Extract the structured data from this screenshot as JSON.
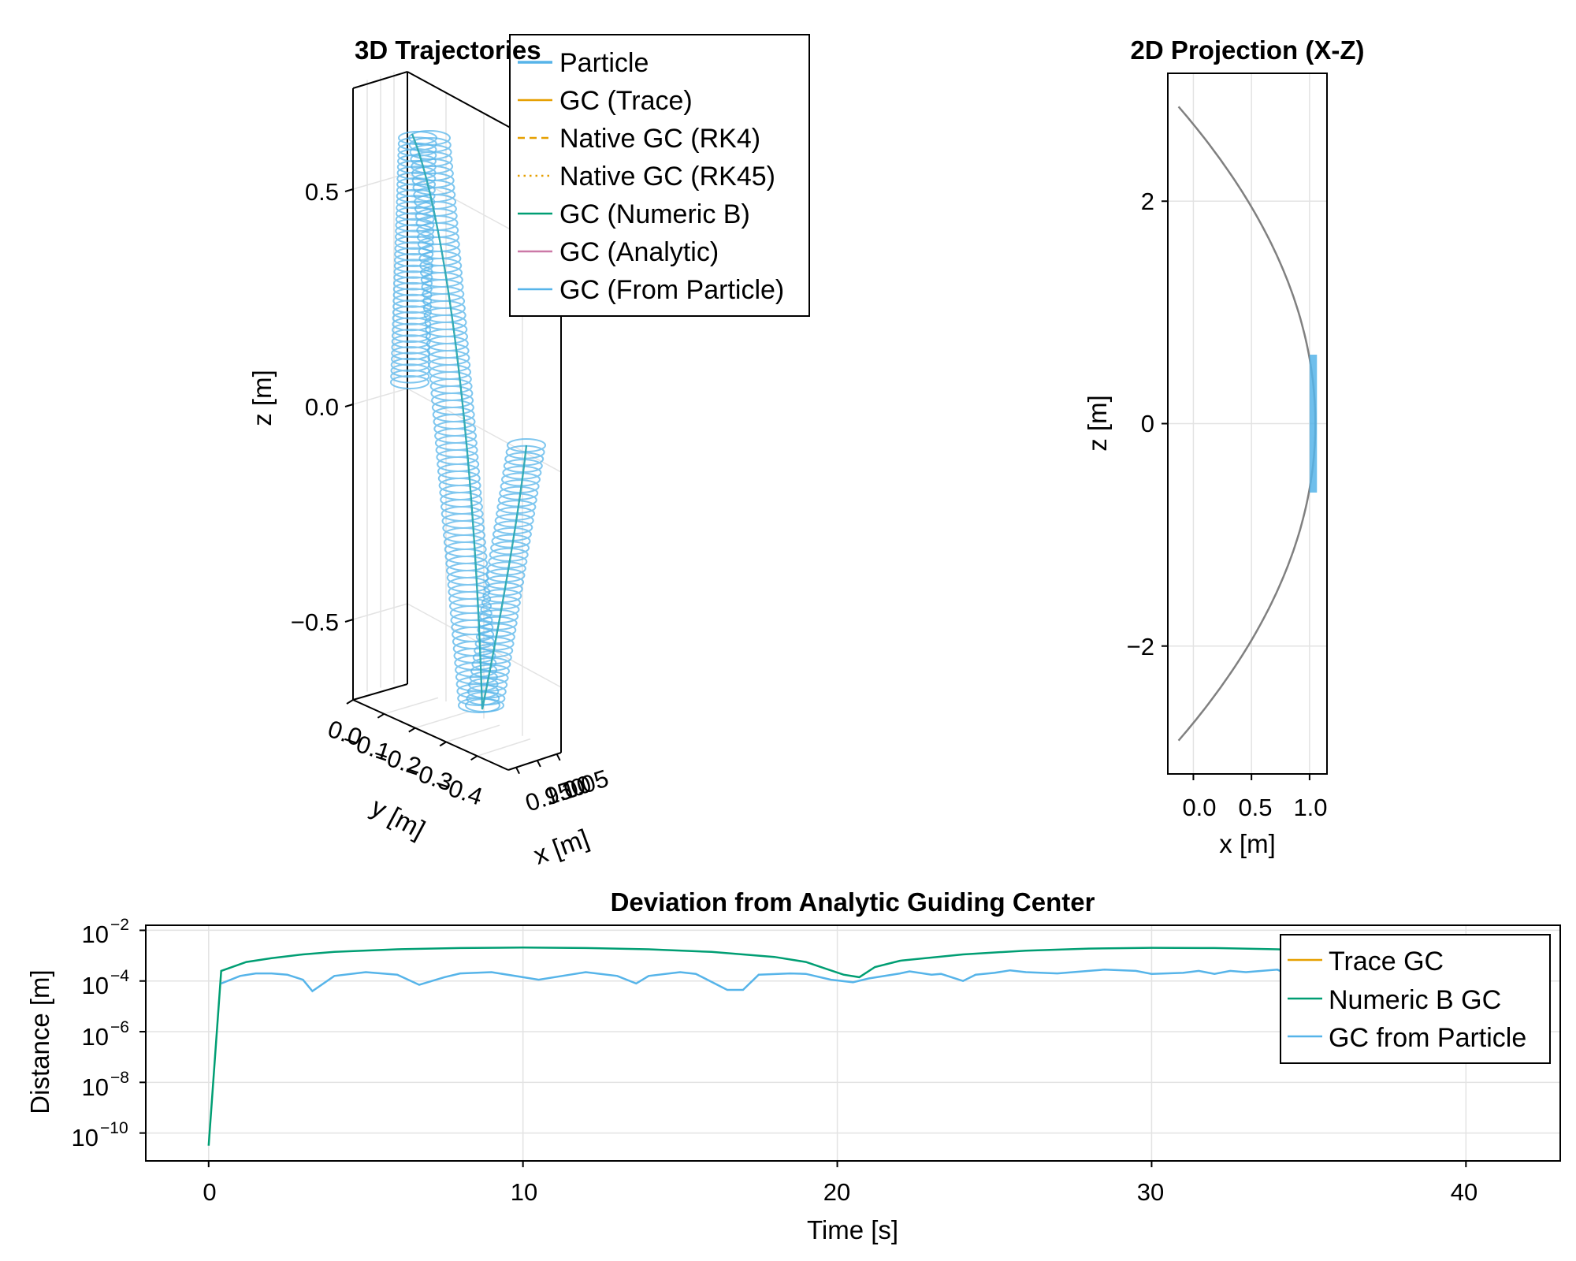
{
  "chart_data": [
    {
      "type": "line",
      "projection": "3d",
      "title": "3D Trajectories",
      "xlabel": "x [m]",
      "ylabel": "y [m]",
      "zlabel": "z [m]",
      "x_ticks": [
        "0.950",
        "1.00",
        "1.05"
      ],
      "y_ticks": [
        "0.0",
        "−0.1",
        "−0.2",
        "−0.3",
        "−0.4"
      ],
      "z_ticks": [
        "0.5",
        "0.0",
        "−0.5"
      ],
      "zlim": [
        -0.7,
        0.75
      ],
      "legend_position": "top-right",
      "legend": [
        {
          "name": "Particle",
          "color": "#56b4e9",
          "style": "solid"
        },
        {
          "name": "GC (Trace)",
          "color": "#e69f00",
          "style": "solid"
        },
        {
          "name": "Native GC (RK4)",
          "color": "#e69f00",
          "style": "dashed"
        },
        {
          "name": "Native GC (RK45)",
          "color": "#e69f00",
          "style": "dotted"
        },
        {
          "name": "GC (Numeric B)",
          "color": "#009e73",
          "style": "solid"
        },
        {
          "name": "GC (Analytic)",
          "color": "#cc79a7",
          "style": "solid"
        },
        {
          "name": "GC (From Particle)",
          "color": "#56b4e9",
          "style": "solid"
        }
      ]
    },
    {
      "type": "line",
      "title": "2D Projection (X-Z)",
      "xlabel": "x [m]",
      "ylabel": "z [m]",
      "xlim": [
        -0.22,
        1.15
      ],
      "ylim": [
        -3.15,
        3.15
      ],
      "x_ticks": [
        0.0,
        0.5,
        1.0
      ],
      "x_tick_labels": [
        "0.0",
        "0.5",
        "1.0"
      ],
      "y_ticks": [
        -2,
        0,
        2
      ],
      "y_tick_labels": [
        "−2",
        "0",
        "2"
      ],
      "grid": true,
      "series": [
        {
          "color": "#808080",
          "description": "unit circle arc x = cos(t), z = sin(t)",
          "z_range": [
            -2.85,
            2.85
          ]
        },
        {
          "color": "#56b4e9",
          "x": [
            1.0,
            1.05
          ],
          "z_range": [
            -0.62,
            0.62
          ]
        }
      ]
    },
    {
      "type": "line",
      "title": "Deviation from Analytic Guiding Center",
      "xlabel": "Time [s]",
      "ylabel": "Distance [m]",
      "yscale": "log",
      "xlim": [
        -2,
        43
      ],
      "ylim_exponent": [
        -11.1,
        -1.8
      ],
      "x_ticks": [
        0,
        10,
        20,
        30,
        40
      ],
      "x_tick_labels": [
        "0",
        "10",
        "20",
        "30",
        "40"
      ],
      "y_tick_exponents": [
        -10,
        -8,
        -6,
        -4,
        -2
      ],
      "y_tick_base": "10",
      "y_tick_exponent_labels": [
        "−10",
        "−8",
        "−6",
        "−4",
        "−2"
      ],
      "grid": true,
      "legend_position": "top-right",
      "legend": [
        {
          "name": "Trace GC",
          "color": "#e69f00"
        },
        {
          "name": "Numeric B GC",
          "color": "#009e73"
        },
        {
          "name": "GC from Particle",
          "color": "#56b4e9"
        }
      ],
      "series": [
        {
          "name": "Numeric B GC",
          "color": "#009e73",
          "x": [
            0,
            0.4,
            1.2,
            2,
            3,
            4,
            6,
            8,
            10,
            12,
            14,
            16,
            17,
            18,
            19,
            19.6,
            20.2,
            20.7,
            21.2,
            22,
            24,
            26,
            28,
            30,
            32,
            34,
            36,
            37.5,
            38.5,
            39.5,
            40.3,
            41
          ],
          "y_log10": [
            -10.5,
            -3.6,
            -3.25,
            -3.1,
            -2.95,
            -2.85,
            -2.75,
            -2.7,
            -2.68,
            -2.7,
            -2.75,
            -2.85,
            -2.95,
            -3.05,
            -3.25,
            -3.5,
            -3.75,
            -3.85,
            -3.45,
            -3.2,
            -2.95,
            -2.8,
            -2.72,
            -2.69,
            -2.7,
            -2.75,
            -2.85,
            -2.95,
            -3.1,
            -3.25,
            -3.45,
            -3.55
          ]
        },
        {
          "name": "GC from Particle",
          "color": "#56b4e9",
          "x": [
            0.4,
            1,
            1.5,
            2,
            2.5,
            3,
            3.3,
            4,
            5,
            6,
            6.7,
            7.5,
            8,
            9,
            10,
            10.5,
            11.5,
            12,
            13,
            13.6,
            14,
            15,
            15.5,
            16.5,
            17,
            17.5,
            18.5,
            19,
            19.8,
            20.5,
            21,
            22,
            22.3,
            23,
            23.3,
            24,
            24.4,
            25,
            25.5,
            26,
            27,
            28,
            28.5,
            29.5,
            30,
            31,
            31.5,
            32,
            32.5,
            33,
            34,
            34.3,
            35,
            35.5,
            36,
            37,
            37.5,
            38.5,
            39,
            40.2,
            41
          ],
          "y_log10": [
            -4.1,
            -3.8,
            -3.7,
            -3.7,
            -3.75,
            -3.95,
            -4.4,
            -3.8,
            -3.65,
            -3.75,
            -4.15,
            -3.85,
            -3.7,
            -3.65,
            -3.85,
            -3.95,
            -3.75,
            -3.65,
            -3.8,
            -4.1,
            -3.8,
            -3.65,
            -3.72,
            -4.35,
            -4.35,
            -3.75,
            -3.7,
            -3.72,
            -3.95,
            -4.05,
            -3.9,
            -3.7,
            -3.62,
            -3.75,
            -3.72,
            -4.0,
            -3.75,
            -3.68,
            -3.58,
            -3.65,
            -3.7,
            -3.6,
            -3.55,
            -3.6,
            -3.72,
            -3.68,
            -3.6,
            -3.72,
            -3.6,
            -3.65,
            -3.55,
            -3.72,
            -3.55,
            -3.68,
            -3.55,
            -3.75,
            -3.65,
            -3.9,
            -3.8,
            -4.25,
            -3.9
          ]
        }
      ]
    }
  ]
}
